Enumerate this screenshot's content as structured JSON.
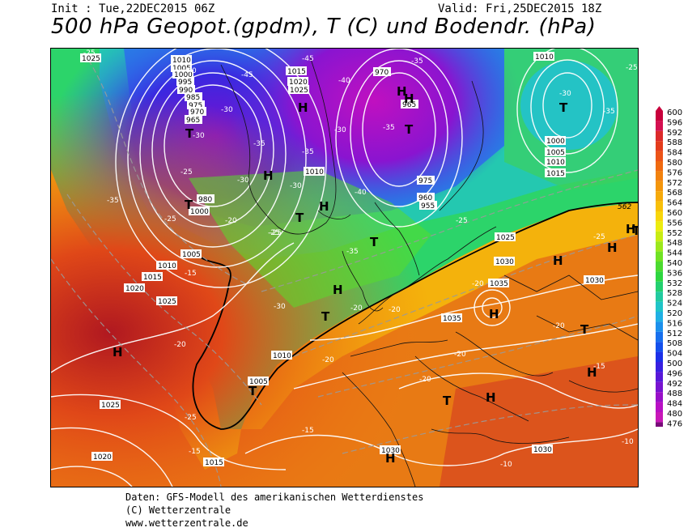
{
  "header": {
    "init": "Init : Tue,22DEC2015 06Z",
    "valid": "Valid: Fri,25DEC2015 18Z",
    "title": "500 hPa Geopot.(gpdm), T (C) und Bodendr. (hPa)"
  },
  "legend": {
    "levels": [
      600,
      596,
      592,
      588,
      584,
      580,
      576,
      572,
      568,
      564,
      560,
      556,
      552,
      548,
      544,
      540,
      536,
      532,
      528,
      524,
      520,
      516,
      512,
      508,
      504,
      500,
      496,
      492,
      488,
      484,
      480,
      476
    ],
    "colors": [
      "#c8003c",
      "#d41050",
      "#dc2a2a",
      "#e43c1c",
      "#ec5418",
      "#f06a10",
      "#f2820e",
      "#f4960c",
      "#f6aa0a",
      "#f8c00a",
      "#f8d60c",
      "#ecec10",
      "#c8ec14",
      "#9ce81c",
      "#70e224",
      "#4cda30",
      "#2ed640",
      "#24d070",
      "#22caa0",
      "#20c4c8",
      "#20b0e4",
      "#1c90ec",
      "#1870ee",
      "#1450ec",
      "#1c30e8",
      "#3820e0",
      "#5818d8",
      "#7814d0",
      "#9810c8",
      "#b810c4",
      "#c818b8",
      "#7a0a7a"
    ]
  },
  "map": {
    "pressure_labels": [
      "1025",
      "1010",
      "1005",
      "1000",
      "995",
      "990",
      "985",
      "980",
      "975",
      "970",
      "965",
      "1015",
      "1020",
      "1025",
      "1010",
      "1000",
      "1005",
      "1010",
      "1015",
      "1020",
      "1025",
      "1030",
      "1035",
      "1035",
      "1030",
      "1030",
      "1025",
      "1020",
      "1015",
      "1010",
      "1005",
      "975",
      "970",
      "965",
      "960",
      "955",
      "1000",
      "1015",
      "1025",
      "1030",
      "1010",
      "1005",
      "1010"
    ],
    "temperature_labels": [
      "-25",
      "-40",
      "-45",
      "-30",
      "-30",
      "-35",
      "-30",
      "-25",
      "-25",
      "-20",
      "-15",
      "-35",
      "-40",
      "-40",
      "-35",
      "-45",
      "-35",
      "-30",
      "-30",
      "-35",
      "-25",
      "-25",
      "-25",
      "-20",
      "-20",
      "-20",
      "-20",
      "-20",
      "-15",
      "-15",
      "-15",
      "-10",
      "-10",
      "-35",
      "-30",
      "-35",
      "-25",
      "-25",
      "-20",
      "-30",
      "-20",
      "-25",
      "-20"
    ],
    "highs": [
      "H",
      "H",
      "H",
      "H",
      "H",
      "H",
      "H",
      "H",
      "H",
      "H",
      "H",
      "H",
      "H",
      "H"
    ],
    "lows": [
      "T",
      "T",
      "T",
      "T",
      "T",
      "T",
      "T",
      "T",
      "T",
      "T",
      "T"
    ],
    "contour_562": "562"
  },
  "footer": {
    "line1": "Daten: GFS-Modell des amerikanischen Wetterdienstes",
    "line2": "(C) Wetterzentrale",
    "line3": "www.wetterzentrale.de"
  }
}
